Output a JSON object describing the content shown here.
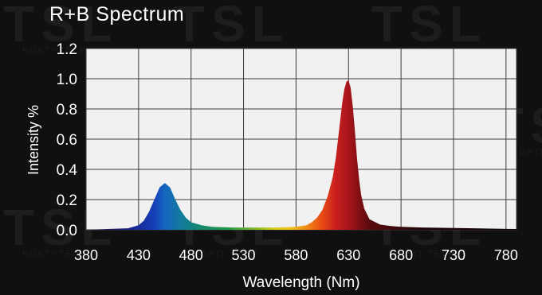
{
  "chart_data": {
    "type": "area",
    "title": "R+B Spectrum",
    "xlabel": "Wavelength (Nm)",
    "ylabel": "Intensity %",
    "xlim": [
      380,
      790
    ],
    "ylim": [
      0,
      1.2
    ],
    "xticks": [
      "380",
      "430",
      "480",
      "530",
      "580",
      "630",
      "680",
      "730",
      "780"
    ],
    "yticks": [
      "0.0",
      "0.2",
      "0.4",
      "0.6",
      "0.8",
      "1.0",
      "1.2"
    ],
    "grid": true,
    "series": [
      {
        "x": [
          380,
          400,
          420,
          430,
          435,
          440,
          445,
          450,
          455,
          460,
          465,
          470,
          475,
          480,
          490,
          500,
          520,
          540,
          560,
          580,
          590,
          595,
          600,
          605,
          610,
          612,
          615,
          618,
          620,
          622,
          624,
          626,
          628,
          630,
          632,
          634,
          636,
          638,
          640,
          642,
          645,
          650,
          660,
          670,
          680,
          700,
          750,
          790
        ],
        "y": [
          0,
          0.005,
          0.01,
          0.03,
          0.06,
          0.12,
          0.2,
          0.28,
          0.31,
          0.28,
          0.2,
          0.13,
          0.08,
          0.05,
          0.03,
          0.02,
          0.015,
          0.015,
          0.015,
          0.02,
          0.03,
          0.05,
          0.08,
          0.13,
          0.22,
          0.27,
          0.35,
          0.48,
          0.6,
          0.72,
          0.84,
          0.93,
          0.98,
          0.99,
          0.94,
          0.82,
          0.66,
          0.48,
          0.34,
          0.23,
          0.14,
          0.07,
          0.035,
          0.025,
          0.02,
          0.015,
          0.01,
          0.005
        ]
      }
    ]
  },
  "watermark": {
    "logo": "TSL",
    "tagline": "HORTI-TECH"
  }
}
